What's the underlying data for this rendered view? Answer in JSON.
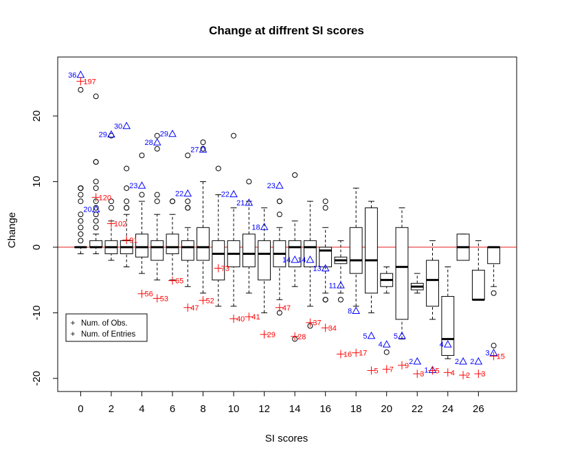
{
  "chart_data": {
    "type": "boxplot",
    "title": "Change at diffrent SI scores",
    "xlabel": "SI scores",
    "ylabel": "Change",
    "xlim": [
      -1.5,
      28.5
    ],
    "ylim": [
      -22,
      29
    ],
    "x_ticks": [
      0,
      2,
      4,
      6,
      8,
      10,
      12,
      14,
      16,
      18,
      20,
      22,
      24,
      26
    ],
    "y_ticks": [
      -20,
      -10,
      0,
      10,
      20
    ],
    "reference_line": {
      "y": 0,
      "color": "#e31a1c"
    },
    "colors": {
      "obs": "#0000ff",
      "entries": "#ff0000",
      "box": "#000000"
    },
    "boxes": [
      {
        "x": 0,
        "min": -1,
        "q1": 0,
        "median": 0,
        "q3": 0,
        "max": 0,
        "outliers": [
          1,
          2,
          3,
          4,
          5,
          7,
          8,
          9,
          9,
          9,
          24
        ]
      },
      {
        "x": 1,
        "min": -1,
        "q1": 0,
        "median": 0,
        "q3": 1,
        "max": 2,
        "outliers": [
          3,
          4,
          5,
          6,
          7,
          9,
          10,
          13,
          13,
          23
        ]
      },
      {
        "x": 2,
        "min": -2,
        "q1": -1,
        "median": 0,
        "q3": 1,
        "max": 4,
        "outliers": [
          6,
          7,
          17
        ]
      },
      {
        "x": 3,
        "min": -3,
        "q1": -1,
        "median": 0,
        "q3": 1,
        "max": 5,
        "outliers": [
          6,
          6,
          7,
          9,
          12
        ]
      },
      {
        "x": 4,
        "min": -4,
        "q1": -1.5,
        "median": 0,
        "q3": 2,
        "max": 7,
        "outliers": [
          8,
          14
        ]
      },
      {
        "x": 5,
        "min": -5,
        "q1": -2,
        "median": 0,
        "q3": 1,
        "max": 5,
        "outliers": [
          7,
          8,
          15,
          17
        ]
      },
      {
        "x": 6,
        "min": -5,
        "q1": -1,
        "median": 0,
        "q3": 2,
        "max": 5,
        "outliers": [
          7,
          7
        ]
      },
      {
        "x": 7,
        "min": -6,
        "q1": -2,
        "median": 0,
        "q3": 1,
        "max": 3,
        "outliers": [
          6,
          6,
          7,
          14
        ]
      },
      {
        "x": 8,
        "min": -7,
        "q1": -2,
        "median": 0,
        "q3": 3,
        "max": 10,
        "outliers": [
          15,
          16
        ]
      },
      {
        "x": 9,
        "min": -9,
        "q1": -5,
        "median": -1,
        "q3": 1,
        "max": 8,
        "outliers": [
          12
        ]
      },
      {
        "x": 10,
        "min": -9,
        "q1": -3,
        "median": -1,
        "q3": 1,
        "max": 6,
        "outliers": [
          17
        ]
      },
      {
        "x": 11,
        "min": -7,
        "q1": -3,
        "median": -1,
        "q3": 2,
        "max": 7,
        "outliers": [
          10
        ]
      },
      {
        "x": 12,
        "min": -10,
        "q1": -5,
        "median": -1,
        "q3": 1,
        "max": 6,
        "outliers": []
      },
      {
        "x": 13,
        "min": -8,
        "q1": -3,
        "median": -1,
        "q3": 1,
        "max": 3,
        "outliers": [
          5,
          7,
          7,
          -10
        ]
      },
      {
        "x": 14,
        "min": -6,
        "q1": -3,
        "median": 0,
        "q3": 1,
        "max": 4,
        "outliers": [
          11,
          -14
        ]
      },
      {
        "x": 15,
        "min": -9,
        "q1": -3,
        "median": 0,
        "q3": 1,
        "max": 7,
        "outliers": [
          -12
        ]
      },
      {
        "x": 16,
        "min": -7,
        "q1": -3,
        "median": -0.5,
        "q3": 0,
        "max": 3,
        "outliers": [
          6,
          7,
          -8,
          -8
        ]
      },
      {
        "x": 17,
        "min": -7,
        "q1": -2.5,
        "median": -2,
        "q3": -1.5,
        "max": 1,
        "outliers": [
          -8
        ]
      },
      {
        "x": 18,
        "min": -9,
        "q1": -4,
        "median": -2,
        "q3": 3,
        "max": 9,
        "outliers": []
      },
      {
        "x": 19,
        "min": -10,
        "q1": -7,
        "median": -2,
        "q3": 6,
        "max": 7,
        "outliers": []
      },
      {
        "x": 20,
        "min": -7,
        "q1": -6,
        "median": -5,
        "q3": -4,
        "max": -3,
        "outliers": [
          -16
        ]
      },
      {
        "x": 21,
        "min": -14,
        "q1": -11,
        "median": -3,
        "q3": 3,
        "max": 6,
        "outliers": []
      },
      {
        "x": 22,
        "min": -7,
        "q1": -6.5,
        "median": -6,
        "q3": -5.5,
        "max": -4,
        "outliers": []
      },
      {
        "x": 23,
        "min": -11,
        "q1": -9,
        "median": -5,
        "q3": -2,
        "max": 1,
        "outliers": []
      },
      {
        "x": 24,
        "min": -17,
        "q1": -16.5,
        "median": -14,
        "q3": -7.5,
        "max": -3,
        "outliers": []
      },
      {
        "x": 25,
        "min": -2,
        "q1": -2,
        "median": 0,
        "q3": 2,
        "max": 2,
        "outliers": []
      },
      {
        "x": 26,
        "min": -8,
        "q1": -8,
        "median": -8,
        "q3": -3.5,
        "max": 1,
        "outliers": []
      },
      {
        "x": 27,
        "min": -6,
        "q1": -2.5,
        "median": 0,
        "q3": 0,
        "max": 0,
        "outliers": [
          -7,
          -15
        ]
      }
    ],
    "num_obs": [
      {
        "x": 0,
        "y": 26.3,
        "label": "36"
      },
      {
        "x": 1,
        "y": 5.8,
        "label": "20"
      },
      {
        "x": 2,
        "y": 17.2,
        "label": "29"
      },
      {
        "x": 3,
        "y": 18.5,
        "label": "30"
      },
      {
        "x": 4,
        "y": 9.4,
        "label": "23"
      },
      {
        "x": 5,
        "y": 16,
        "label": "28"
      },
      {
        "x": 6,
        "y": 17.3,
        "label": "29"
      },
      {
        "x": 7,
        "y": 8.2,
        "label": "22"
      },
      {
        "x": 8,
        "y": 14.9,
        "label": "27"
      },
      {
        "x": 10,
        "y": 8.1,
        "label": "22"
      },
      {
        "x": 11,
        "y": 6.8,
        "label": "21"
      },
      {
        "x": 12,
        "y": 3.1,
        "label": "18"
      },
      {
        "x": 13,
        "y": 9.4,
        "label": "23"
      },
      {
        "x": 14,
        "y": -1.9,
        "label": "14"
      },
      {
        "x": 15,
        "y": -1.9,
        "label": "14"
      },
      {
        "x": 16,
        "y": -3.2,
        "label": "13"
      },
      {
        "x": 17,
        "y": -5.8,
        "label": "11"
      },
      {
        "x": 18,
        "y": -9.7,
        "label": "8"
      },
      {
        "x": 19,
        "y": -13.5,
        "label": "5"
      },
      {
        "x": 20,
        "y": -14.8,
        "label": "4"
      },
      {
        "x": 21,
        "y": -13.5,
        "label": "5"
      },
      {
        "x": 22,
        "y": -17.4,
        "label": "2"
      },
      {
        "x": 23,
        "y": -18.7,
        "label": "1"
      },
      {
        "x": 24,
        "y": -14.8,
        "label": "4"
      },
      {
        "x": 25,
        "y": -17.4,
        "label": "2"
      },
      {
        "x": 26,
        "y": -17.4,
        "label": "2"
      },
      {
        "x": 27,
        "y": -16.1,
        "label": "3"
      }
    ],
    "num_entries": [
      {
        "x": 0,
        "y": 25.3,
        "label": "197"
      },
      {
        "x": 1,
        "y": 7.6,
        "label": "120"
      },
      {
        "x": 2,
        "y": 3.6,
        "label": "102"
      },
      {
        "x": 3,
        "y": 1.1,
        "label": "91"
      },
      {
        "x": 4,
        "y": -7.1,
        "label": "56"
      },
      {
        "x": 5,
        "y": -7.8,
        "label": "53"
      },
      {
        "x": 6,
        "y": -5.1,
        "label": "65"
      },
      {
        "x": 7,
        "y": -9.2,
        "label": "47"
      },
      {
        "x": 8,
        "y": -8.1,
        "label": "52"
      },
      {
        "x": 9,
        "y": -3.2,
        "label": "73"
      },
      {
        "x": 10,
        "y": -10.9,
        "label": "40"
      },
      {
        "x": 11,
        "y": -10.6,
        "label": "41"
      },
      {
        "x": 12,
        "y": -13.3,
        "label": "29"
      },
      {
        "x": 13,
        "y": -9.2,
        "label": "47"
      },
      {
        "x": 14,
        "y": -13.6,
        "label": "28"
      },
      {
        "x": 15,
        "y": -11.5,
        "label": "37"
      },
      {
        "x": 16,
        "y": -12.3,
        "label": "34"
      },
      {
        "x": 17,
        "y": -16.3,
        "label": "16"
      },
      {
        "x": 18,
        "y": -16.1,
        "label": "17"
      },
      {
        "x": 19,
        "y": -18.8,
        "label": "5"
      },
      {
        "x": 20,
        "y": -18.6,
        "label": "7"
      },
      {
        "x": 21,
        "y": -18.0,
        "label": "9"
      },
      {
        "x": 22,
        "y": -19.3,
        "label": "3"
      },
      {
        "x": 23,
        "y": -18.8,
        "label": "5"
      },
      {
        "x": 24,
        "y": -19.1,
        "label": "4"
      },
      {
        "x": 25,
        "y": -19.5,
        "label": "2"
      },
      {
        "x": 26,
        "y": -19.3,
        "label": "3"
      },
      {
        "x": 27,
        "y": -16.6,
        "label": "15"
      }
    ],
    "legend": {
      "placement": "bottom-left",
      "entries": [
        {
          "symbol": "+",
          "label": "Num. of Obs.",
          "color": "#0000ff"
        },
        {
          "symbol": "+",
          "label": "Num. of Entries",
          "color": "#ff0000"
        }
      ]
    }
  }
}
